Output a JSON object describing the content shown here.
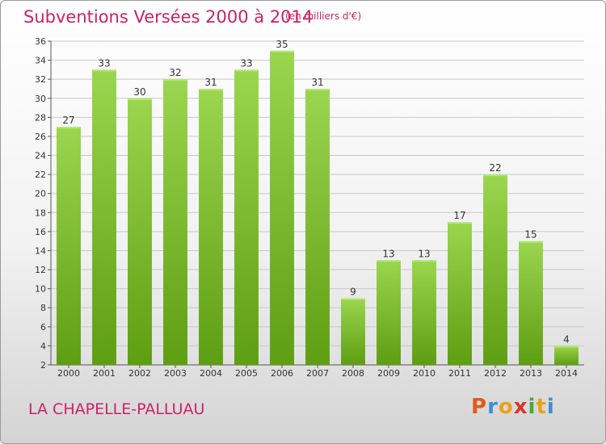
{
  "header": {
    "title": "Subventions Versées 2000 à 2014",
    "unit": "(en milliers d'€)"
  },
  "footer": {
    "commune": "LA CHAPELLE-PALLUAU",
    "logo_letters": [
      "P",
      "r",
      "o",
      "x",
      "i",
      "t",
      "i"
    ],
    "logo_colors": [
      "#e05a1c",
      "#3a8fd8",
      "#e8a21a",
      "#d8352a",
      "#4aa83a",
      "#e8a21a",
      "#3a8fd8"
    ]
  },
  "colors": {
    "title": "#cc2266",
    "bar_top": "#9ad64f",
    "bar_bottom": "#5e9e12",
    "grid": "#c8c8c8"
  },
  "chart_data": {
    "type": "bar",
    "title": "Subventions Versées 2000 à 2014",
    "categories": [
      "2000",
      "2001",
      "2002",
      "2003",
      "2004",
      "2005",
      "2006",
      "2007",
      "2008",
      "2009",
      "2010",
      "2011",
      "2012",
      "2013",
      "2014"
    ],
    "values": [
      27,
      33,
      30,
      32,
      31,
      33,
      35,
      31,
      9,
      13,
      13,
      17,
      22,
      15,
      4
    ],
    "ylim": [
      2,
      36
    ],
    "yticks": [
      2,
      4,
      6,
      8,
      10,
      12,
      14,
      16,
      18,
      20,
      22,
      24,
      26,
      28,
      30,
      32,
      34,
      36
    ],
    "grid": true,
    "legend": "none"
  }
}
